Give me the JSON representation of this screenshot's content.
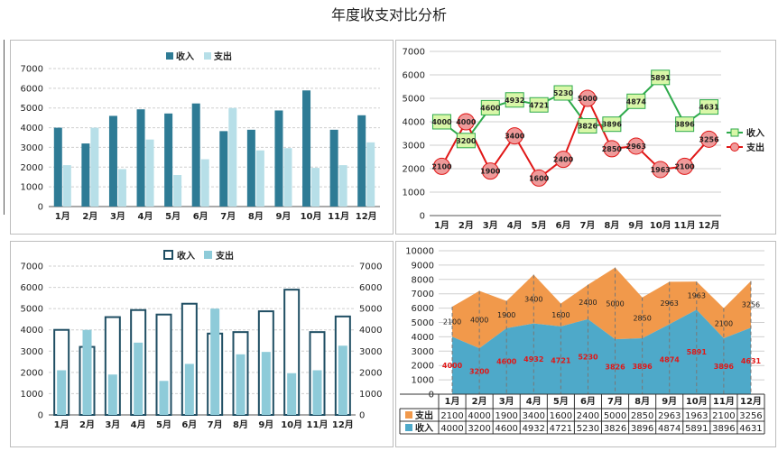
{
  "title": "年度收支对比分析",
  "colors": {
    "income_dark": "#2e7b95",
    "expense_light": "#b7dfe8",
    "line_income": "#2eaa4b",
    "line_income_marker": "#d9f7a8",
    "line_expense": "#e01717",
    "line_expense_marker": "#ef9a9a",
    "area_income": "#4ea9c9",
    "area_expense": "#f1994b",
    "outline_bar": "#1f4e63",
    "fill_bar": "#8ecbd9",
    "value_red": "#e01717"
  },
  "chart_data": [
    {
      "type": "bar",
      "categories": [
        "1月",
        "2月",
        "3月",
        "4月",
        "5月",
        "6月",
        "7月",
        "8月",
        "9月",
        "10月",
        "11月",
        "12月"
      ],
      "series": [
        {
          "name": "收入",
          "values": [
            4000,
            3200,
            4600,
            4932,
            4721,
            5230,
            3826,
            3896,
            4874,
            5891,
            3896,
            4631
          ]
        },
        {
          "name": "支出",
          "values": [
            2100,
            4000,
            1900,
            3400,
            1600,
            2400,
            5000,
            2850,
            2963,
            1963,
            2100,
            3256
          ]
        }
      ],
      "ylim": [
        0,
        7000
      ],
      "yticks": [
        "0",
        "1000",
        "2000",
        "3000",
        "4000",
        "5000",
        "6000",
        "7000"
      ],
      "legend": "top-center",
      "grid": true
    },
    {
      "type": "line",
      "categories": [
        "1月",
        "2月",
        "3月",
        "4月",
        "5月",
        "6月",
        "7月",
        "8月",
        "9月",
        "10月",
        "11月",
        "12月"
      ],
      "series": [
        {
          "name": "收入",
          "values": [
            4000,
            3200,
            4600,
            4932,
            4721,
            5230,
            3826,
            3896,
            4874,
            5891,
            3896,
            4631
          ]
        },
        {
          "name": "支出",
          "values": [
            2100,
            4000,
            1900,
            3400,
            1600,
            2400,
            5000,
            2850,
            2963,
            1963,
            2100,
            3256
          ]
        }
      ],
      "ylim": [
        0,
        7000
      ],
      "yticks": [
        "0",
        "1000",
        "2000",
        "3000",
        "4000",
        "5000",
        "6000",
        "7000"
      ],
      "legend": "right",
      "grid": true
    },
    {
      "type": "bar",
      "categories": [
        "1月",
        "2月",
        "3月",
        "4月",
        "5月",
        "6月",
        "7月",
        "8月",
        "9月",
        "10月",
        "11月",
        "12月"
      ],
      "series": [
        {
          "name": "收入",
          "values": [
            4000,
            3200,
            4600,
            4932,
            4721,
            5230,
            3826,
            3896,
            4874,
            5891,
            3896,
            4631
          ]
        },
        {
          "name": "支出",
          "values": [
            2100,
            4000,
            1900,
            3400,
            1600,
            2400,
            5000,
            2850,
            2963,
            1963,
            2100,
            3256
          ]
        }
      ],
      "ylim": [
        0,
        7000
      ],
      "yticks": [
        "0",
        "1000",
        "2000",
        "3000",
        "4000",
        "5000",
        "6000",
        "7000"
      ],
      "legend": "top-center",
      "grid": true
    },
    {
      "type": "area",
      "categories": [
        "1月",
        "2月",
        "3月",
        "4月",
        "5月",
        "6月",
        "7月",
        "8月",
        "9月",
        "10月",
        "11月",
        "12月"
      ],
      "series": [
        {
          "name": "收入",
          "values": [
            4000,
            3200,
            4600,
            4932,
            4721,
            5230,
            3826,
            3896,
            4874,
            5891,
            3896,
            4631
          ]
        },
        {
          "name": "支出",
          "values": [
            2100,
            4000,
            1900,
            3400,
            1600,
            2400,
            5000,
            2850,
            2963,
            1963,
            2100,
            3256
          ]
        }
      ],
      "stacked": true,
      "ylim": [
        0,
        10000
      ],
      "yticks": [
        "0",
        "1000",
        "2000",
        "3000",
        "4000",
        "5000",
        "6000",
        "7000",
        "8000",
        "9000",
        "10000"
      ],
      "legend": "bottom-table",
      "grid": true
    }
  ]
}
